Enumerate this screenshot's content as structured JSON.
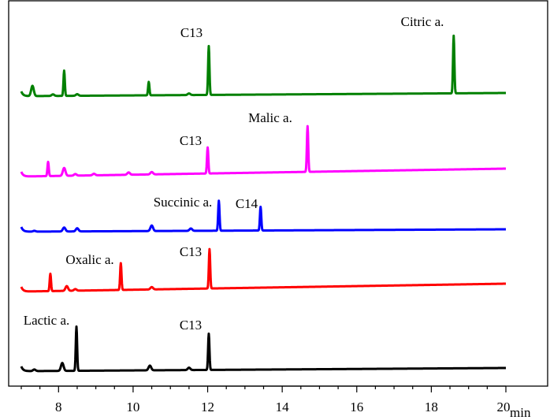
{
  "chart_data": {
    "type": "line",
    "title": "",
    "xlabel": "min",
    "ylabel": "",
    "xlim": [
      7,
      20
    ],
    "xticks": [
      8,
      10,
      12,
      14,
      16,
      18,
      20
    ],
    "grid": false,
    "legend": "none",
    "series": [
      {
        "color": "#008000",
        "peaks": [
          [
            7.3,
            0.13
          ],
          [
            7.85,
            0.02
          ],
          [
            8.15,
            0.32
          ],
          [
            8.5,
            0.02
          ],
          [
            10.42,
            0.17
          ],
          [
            11.5,
            0.02
          ],
          [
            12.03,
            0.62
          ],
          [
            18.6,
            0.73
          ]
        ]
      },
      {
        "color": "#ff00ff",
        "peaks": [
          [
            7.72,
            0.18
          ],
          [
            8.15,
            0.1
          ],
          [
            8.45,
            0.02
          ],
          [
            8.95,
            0.02
          ],
          [
            9.88,
            0.03
          ],
          [
            10.5,
            0.03
          ],
          [
            12.0,
            0.33
          ],
          [
            14.68,
            0.58
          ]
        ]
      },
      {
        "color": "#0000ff",
        "peaks": [
          [
            7.35,
            0.01
          ],
          [
            8.15,
            0.05
          ],
          [
            8.5,
            0.04
          ],
          [
            10.5,
            0.07
          ],
          [
            11.55,
            0.03
          ],
          [
            12.3,
            0.38
          ],
          [
            13.42,
            0.3
          ]
        ]
      },
      {
        "color": "#ff0000",
        "peaks": [
          [
            7.78,
            0.22
          ],
          [
            8.22,
            0.06
          ],
          [
            8.45,
            0.02
          ],
          [
            9.67,
            0.34
          ],
          [
            10.5,
            0.03
          ],
          [
            12.05,
            0.5
          ]
        ]
      },
      {
        "color": "#000000",
        "peaks": [
          [
            7.35,
            0.02
          ],
          [
            8.1,
            0.1
          ],
          [
            8.48,
            0.56
          ],
          [
            10.45,
            0.06
          ],
          [
            11.5,
            0.03
          ],
          [
            12.03,
            0.46
          ]
        ]
      }
    ],
    "annotations": [
      {
        "text": "Citric a.",
        "series": 0
      },
      {
        "text": "C13",
        "series": 0
      },
      {
        "text": "Malic a.",
        "series": 1
      },
      {
        "text": "C13",
        "series": 1
      },
      {
        "text": "Succinic a.",
        "series": 2
      },
      {
        "text": "C14",
        "series": 2
      },
      {
        "text": "Oxalic a.",
        "series": 3
      },
      {
        "text": "C13",
        "series": 3
      },
      {
        "text": "Lactic a.",
        "series": 4
      },
      {
        "text": "C13",
        "series": 4
      }
    ]
  }
}
